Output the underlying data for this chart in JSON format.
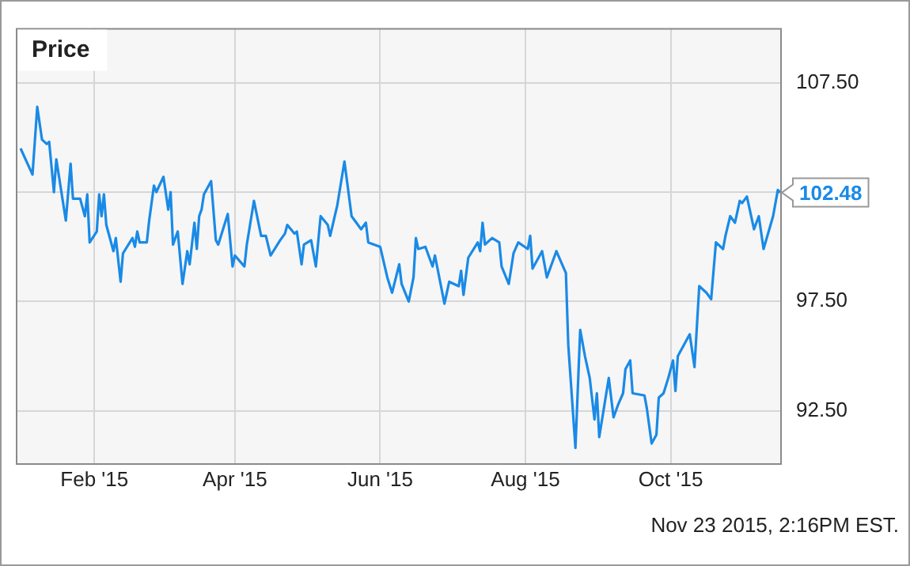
{
  "chart_data": {
    "type": "line",
    "title": "Price",
    "x": [
      "2015-01-01",
      "2015-01-06",
      "2015-01-08",
      "2015-01-10",
      "2015-01-12",
      "2015-01-13",
      "2015-01-15",
      "2015-01-16",
      "2015-01-20",
      "2015-01-22",
      "2015-01-23",
      "2015-01-26",
      "2015-01-28",
      "2015-01-29",
      "2015-01-30",
      "2015-02-02",
      "2015-02-03",
      "2015-02-04",
      "2015-02-05",
      "2015-02-06",
      "2015-02-09",
      "2015-02-10",
      "2015-02-12",
      "2015-02-13",
      "2015-02-17",
      "2015-02-18",
      "2015-02-19",
      "2015-02-20",
      "2015-02-23",
      "2015-02-24",
      "2015-02-26",
      "2015-02-27",
      "2015-03-02",
      "2015-03-04",
      "2015-03-05",
      "2015-03-06",
      "2015-03-08",
      "2015-03-10",
      "2015-03-12",
      "2015-03-13",
      "2015-03-15",
      "2015-03-16",
      "2015-03-17",
      "2015-03-18",
      "2015-03-19",
      "2015-03-22",
      "2015-03-24",
      "2015-03-25",
      "2015-03-29",
      "2015-03-31",
      "2015-04-01",
      "2015-04-05",
      "2015-04-06",
      "2015-04-09",
      "2015-04-12",
      "2015-04-14",
      "2015-04-16",
      "2015-04-20",
      "2015-04-22",
      "2015-04-23",
      "2015-04-26",
      "2015-04-27",
      "2015-04-29",
      "2015-04-30",
      "2015-05-03",
      "2015-05-05",
      "2015-05-07",
      "2015-05-10",
      "2015-05-11",
      "2015-05-14",
      "2015-05-17",
      "2015-05-20",
      "2015-05-24",
      "2015-05-26",
      "2015-05-27",
      "2015-06-01",
      "2015-06-04",
      "2015-06-06",
      "2015-06-09",
      "2015-06-10",
      "2015-06-13",
      "2015-06-15",
      "2015-06-16",
      "2015-06-17",
      "2015-06-20",
      "2015-06-23",
      "2015-06-24",
      "2015-06-28",
      "2015-06-30",
      "2015-07-04",
      "2015-07-05",
      "2015-07-06",
      "2015-07-08",
      "2015-07-12",
      "2015-07-13",
      "2015-07-14",
      "2015-07-15",
      "2015-07-18",
      "2015-07-21",
      "2015-07-22",
      "2015-07-25",
      "2015-07-27",
      "2015-07-29",
      "2015-08-02",
      "2015-08-03",
      "2015-08-04",
      "2015-08-08",
      "2015-08-10",
      "2015-08-14",
      "2015-08-16",
      "2015-08-18",
      "2015-08-19",
      "2015-08-22",
      "2015-08-24",
      "2015-08-26",
      "2015-08-28",
      "2015-08-30",
      "2015-08-31",
      "2015-09-01",
      "2015-09-05",
      "2015-09-07",
      "2015-09-09",
      "2015-09-11",
      "2015-09-12",
      "2015-09-14",
      "2015-09-15",
      "2015-09-20",
      "2015-09-21",
      "2015-09-23",
      "2015-09-25",
      "2015-09-26",
      "2015-09-28",
      "2015-09-30",
      "2015-10-02",
      "2015-10-03",
      "2015-10-04",
      "2015-10-09",
      "2015-10-11",
      "2015-10-13",
      "2015-10-16",
      "2015-10-18",
      "2015-10-20",
      "2015-10-23",
      "2015-10-24",
      "2015-10-26",
      "2015-10-28",
      "2015-10-30",
      "2015-10-31",
      "2015-11-02",
      "2015-11-05",
      "2015-11-07",
      "2015-11-09",
      "2015-11-13",
      "2015-11-15",
      "2015-11-16"
    ],
    "series": [
      {
        "color": "#1a8ae6",
        "values": [
          104.5,
          103.3,
          106.4,
          104.9,
          104.7,
          104.8,
          102.5,
          104.0,
          101.2,
          103.8,
          102.2,
          102.2,
          101.4,
          102.4,
          100.2,
          100.7,
          102.4,
          101.4,
          102.4,
          101.0,
          99.8,
          100.4,
          98.4,
          99.7,
          100.4,
          100.0,
          100.7,
          100.2,
          100.2,
          101.2,
          102.8,
          102.5,
          103.2,
          101.7,
          102.5,
          100.1,
          100.7,
          98.3,
          99.8,
          99.2,
          101.1,
          99.9,
          101.4,
          101.7,
          102.4,
          103.0,
          100.3,
          100.1,
          101.5,
          99.1,
          99.6,
          99.1,
          100.1,
          102.1,
          100.5,
          100.5,
          99.6,
          100.3,
          100.6,
          101.0,
          100.6,
          100.7,
          99.2,
          100.1,
          100.3,
          99.1,
          101.4,
          101.0,
          100.5,
          101.9,
          103.9,
          101.4,
          100.8,
          101.1,
          100.2,
          100.0,
          98.6,
          97.9,
          99.2,
          98.3,
          97.5,
          98.6,
          100.4,
          99.9,
          100.0,
          99.1,
          99.6,
          97.4,
          98.4,
          98.2,
          98.9,
          97.8,
          99.5,
          100.2,
          99.8,
          101.1,
          100.1,
          100.4,
          100.2,
          99.1,
          98.3,
          99.7,
          100.2,
          99.9,
          100.5,
          99.0,
          99.8,
          98.6,
          99.8,
          99.3,
          98.8,
          95.5,
          90.8,
          96.2,
          95.0,
          94.0,
          92.1,
          93.3,
          91.3,
          94.0,
          92.2,
          92.8,
          93.3,
          94.4,
          94.8,
          93.3,
          93.2,
          92.6,
          91.0,
          91.4,
          93.1,
          93.3,
          94.0,
          94.8,
          93.4,
          95.0,
          96.0,
          94.5,
          98.2,
          97.9,
          97.6,
          100.2,
          99.9,
          100.5,
          101.4,
          101.1,
          102.1,
          102.0,
          102.3,
          100.8,
          101.4,
          99.9,
          101.4,
          102.6,
          102.48
        ]
      }
    ],
    "xlim": [
      "2014-12-30",
      "2015-11-16"
    ],
    "xticks": [
      {
        "value": "2015-02-01",
        "label": "Feb '15"
      },
      {
        "value": "2015-04-01",
        "label": "Apr '15"
      },
      {
        "value": "2015-06-01",
        "label": "Jun '15"
      },
      {
        "value": "2015-08-01",
        "label": "Aug '15"
      },
      {
        "value": "2015-10-01",
        "label": "Oct '15"
      }
    ],
    "ylim": [
      90.1,
      110.0
    ],
    "yticks": [
      {
        "value": 92.5,
        "label": "92.50"
      },
      {
        "value": 97.5,
        "label": "97.50"
      },
      {
        "value": 102.5,
        "label": null
      },
      {
        "value": 107.5,
        "label": "107.50"
      }
    ],
    "grid": true,
    "legend": false,
    "marker": "none",
    "line_style": "solid",
    "annotations": [
      {
        "text": "102.48",
        "x": "2015-11-16",
        "y": 102.48
      },
      "Nov 23 2015, 2:16PM EST."
    ]
  }
}
